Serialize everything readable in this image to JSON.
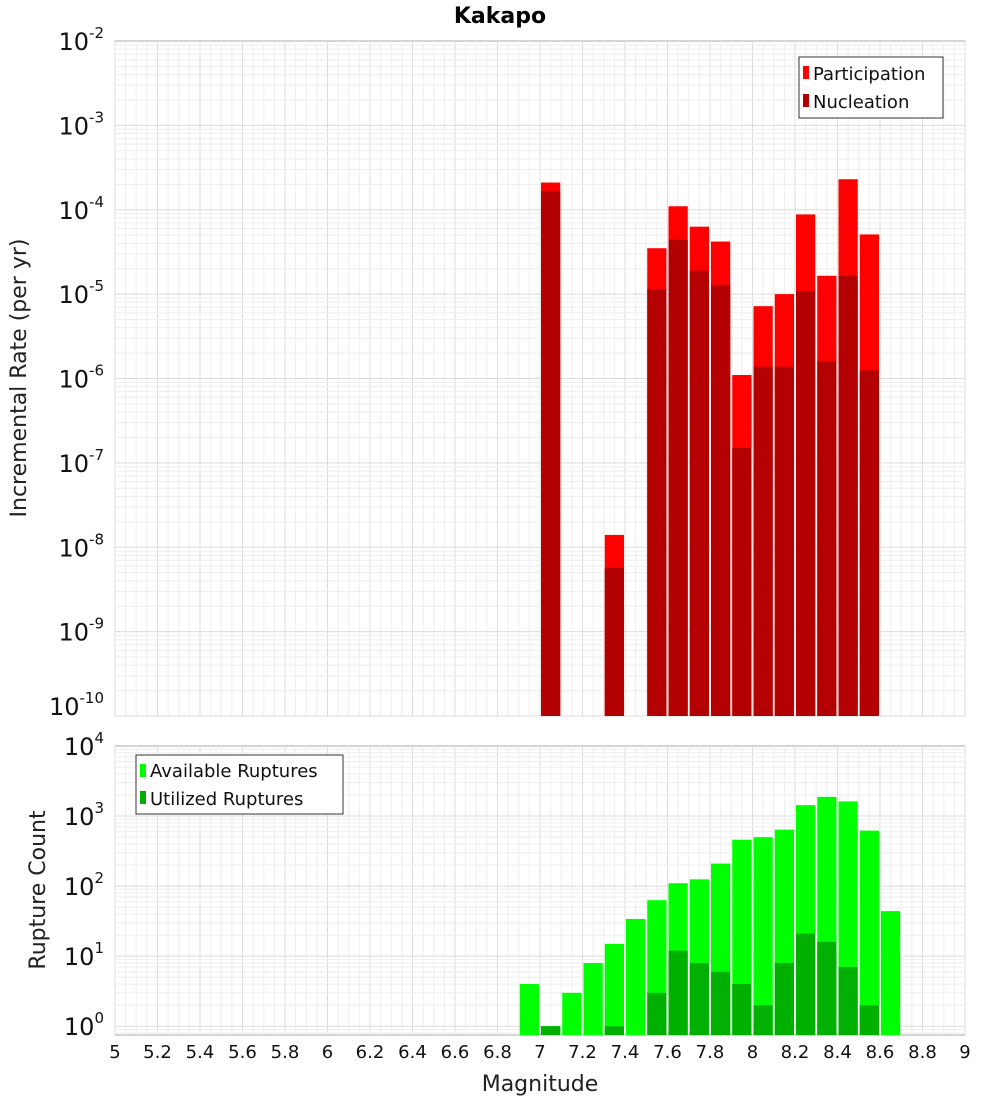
{
  "chart_data": [
    {
      "type": "bar",
      "title": "Kakapo",
      "xlabel": "",
      "ylabel": "Incremental Rate (per yr)",
      "yscale": "log",
      "ylim": [
        1e-10,
        0.01
      ],
      "xlim": [
        5,
        9
      ],
      "grid": true,
      "legend_placement": "top-right",
      "ytick_labels": [
        {
          "base": "10",
          "exp": "-2"
        },
        {
          "base": "10",
          "exp": "-3"
        },
        {
          "base": "10",
          "exp": "-4"
        },
        {
          "base": "10",
          "exp": "-5"
        },
        {
          "base": "10",
          "exp": "-6"
        },
        {
          "base": "10",
          "exp": "-7"
        },
        {
          "base": "10",
          "exp": "-8"
        },
        {
          "base": "10",
          "exp": "-9"
        },
        {
          "base": "10",
          "exp": "-10"
        }
      ],
      "bin_width": 0.1,
      "series": [
        {
          "name": "Participation",
          "color": "#ff0000",
          "x": [
            7.05,
            7.35,
            7.55,
            7.65,
            7.75,
            7.85,
            7.95,
            8.05,
            8.15,
            8.25,
            8.35,
            8.45,
            8.55
          ],
          "values": [
            0.00021,
            1.4e-08,
            3.5e-05,
            0.00011,
            6.3e-05,
            4.2e-05,
            1.1e-06,
            7.2e-06,
            1e-05,
            8.8e-05,
            1.65e-05,
            0.00023,
            5.1e-05
          ]
        },
        {
          "name": "Nucleation",
          "color": "#b30000",
          "x": [
            7.05,
            7.35,
            7.55,
            7.65,
            7.75,
            7.85,
            7.95,
            8.05,
            8.15,
            8.25,
            8.35,
            8.45,
            8.55
          ],
          "values": [
            0.000165,
            5.7e-09,
            1.15e-05,
            4.4e-05,
            1.9e-05,
            1.28e-05,
            1.5e-07,
            1.38e-06,
            1.38e-06,
            1.08e-05,
            1.6e-06,
            1.65e-05,
            1.25e-06
          ]
        }
      ]
    },
    {
      "type": "bar",
      "xlabel": "Magnitude",
      "ylabel": "Rupture Count",
      "yscale": "log",
      "ylim": [
        0.75,
        10000
      ],
      "xlim": [
        5,
        9
      ],
      "grid": true,
      "legend_placement": "top-left",
      "xtick_labels": [
        "5",
        "5.2",
        "5.4",
        "5.6",
        "5.8",
        "6",
        "6.2",
        "6.4",
        "6.6",
        "6.8",
        "7",
        "7.2",
        "7.4",
        "7.6",
        "7.8",
        "8",
        "8.2",
        "8.4",
        "8.6",
        "8.8",
        "9"
      ],
      "ytick_labels": [
        {
          "base": "10",
          "exp": "4"
        },
        {
          "base": "10",
          "exp": "3"
        },
        {
          "base": "10",
          "exp": "2"
        },
        {
          "base": "10",
          "exp": "1"
        },
        {
          "base": "10",
          "exp": "0"
        }
      ],
      "bin_width": 0.1,
      "series": [
        {
          "name": "Available Ruptures",
          "color": "#00ff00",
          "x": [
            6.95,
            7.05,
            7.15,
            7.25,
            7.35,
            7.45,
            7.55,
            7.65,
            7.75,
            7.85,
            7.95,
            8.05,
            8.15,
            8.25,
            8.35,
            8.45,
            8.55,
            8.65
          ],
          "values": [
            4,
            1,
            3,
            8,
            15,
            34,
            63,
            110,
            125,
            210,
            460,
            500,
            640,
            1430,
            1880,
            1620,
            620,
            44
          ]
        },
        {
          "name": "Utilized Ruptures",
          "color": "#00b000",
          "x": [
            7.05,
            7.35,
            7.55,
            7.65,
            7.75,
            7.85,
            7.95,
            8.05,
            8.15,
            8.25,
            8.35,
            8.45,
            8.55
          ],
          "values": [
            1,
            1,
            3,
            12,
            8,
            6,
            4,
            2,
            8,
            21,
            16,
            7,
            2
          ]
        }
      ]
    }
  ]
}
